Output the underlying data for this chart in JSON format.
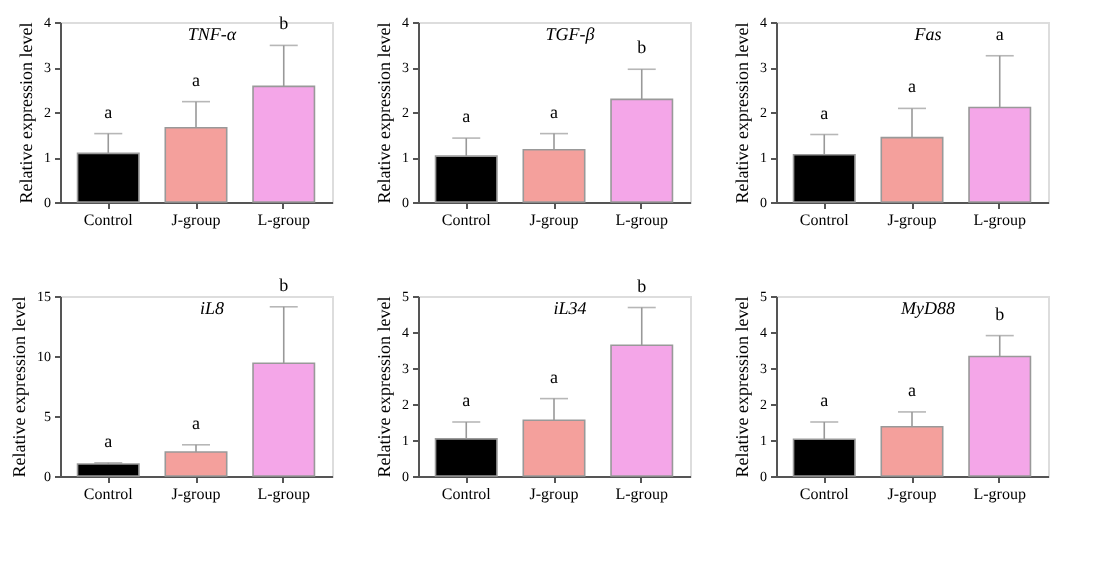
{
  "chart_data": [
    {
      "type": "bar",
      "title": "TNF-α",
      "ylabel": "Relative expression level",
      "categories": [
        "Control",
        "J-group",
        "L-group"
      ],
      "values": [
        1.08,
        1.65,
        2.57
      ],
      "colors": [
        "#000000",
        "#f4a09c",
        "#f4a6e8"
      ],
      "errors": [
        [
          1.08,
          1.52
        ],
        [
          1.65,
          2.23
        ],
        [
          2.57,
          3.48
        ]
      ],
      "ylim": [
        0,
        4
      ],
      "yticks": [
        0,
        1,
        2,
        3,
        4
      ],
      "grid": false,
      "annotations": [
        {
          "text": "a",
          "x": "Control",
          "y": 1.52
        },
        {
          "text": "a",
          "x": "J-group",
          "y": 2.23
        },
        {
          "text": "b",
          "x": "L-group",
          "y": 3.48
        }
      ]
    },
    {
      "type": "bar",
      "title": "TGF-β",
      "ylabel": "Relative expression level",
      "categories": [
        "Control",
        "J-group",
        "L-group"
      ],
      "values": [
        1.02,
        1.16,
        2.28
      ],
      "colors": [
        "#000000",
        "#f4a09c",
        "#f4a6e8"
      ],
      "errors": [
        [
          1.02,
          1.42
        ],
        [
          1.16,
          1.52
        ],
        [
          2.28,
          2.95
        ]
      ],
      "ylim": [
        0,
        4
      ],
      "yticks": [
        0,
        1,
        2,
        3,
        4
      ],
      "grid": false,
      "annotations": [
        {
          "text": "a",
          "x": "Control",
          "y": 1.42
        },
        {
          "text": "a",
          "x": "J-group",
          "y": 1.52
        },
        {
          "text": "b",
          "x": "L-group",
          "y": 2.95
        }
      ]
    },
    {
      "type": "bar",
      "title": "Fas",
      "ylabel": "Relative expression level",
      "categories": [
        "Control",
        "J-group",
        "L-group"
      ],
      "values": [
        1.05,
        1.43,
        2.1
      ],
      "colors": [
        "#000000",
        "#f4a09c",
        "#f4a6e8"
      ],
      "errors": [
        [
          1.05,
          1.5
        ],
        [
          1.43,
          2.08
        ],
        [
          2.1,
          3.25
        ]
      ],
      "ylim": [
        0,
        4
      ],
      "yticks": [
        0,
        1,
        2,
        3,
        4
      ],
      "grid": false,
      "annotations": [
        {
          "text": "a",
          "x": "Control",
          "y": 1.5
        },
        {
          "text": "a",
          "x": "J-group",
          "y": 2.08
        },
        {
          "text": "a",
          "x": "L-group",
          "y": 3.25
        }
      ]
    },
    {
      "type": "bar",
      "title": "iL8",
      "ylabel": "Relative expression level",
      "categories": [
        "Control",
        "J-group",
        "L-group"
      ],
      "values": [
        1.0,
        2.0,
        9.4
      ],
      "colors": [
        "#000000",
        "#f4a09c",
        "#f4a6e8"
      ],
      "errors": [
        [
          1.0,
          1.1
        ],
        [
          2.0,
          2.6
        ],
        [
          9.4,
          14.1
        ]
      ],
      "ylim": [
        0,
        15
      ],
      "yticks": [
        0,
        5,
        10,
        15
      ],
      "grid": false,
      "annotations": [
        {
          "text": "a",
          "x": "Control",
          "y": 1.1
        },
        {
          "text": "a",
          "x": "J-group",
          "y": 2.6
        },
        {
          "text": "b",
          "x": "L-group",
          "y": 14.1
        }
      ]
    },
    {
      "type": "bar",
      "title": "iL34",
      "ylabel": "Relative expression level",
      "categories": [
        "Control",
        "J-group",
        "L-group"
      ],
      "values": [
        1.03,
        1.55,
        3.63
      ],
      "colors": [
        "#000000",
        "#f4a09c",
        "#f4a6e8"
      ],
      "errors": [
        [
          1.03,
          1.5
        ],
        [
          1.55,
          2.15
        ],
        [
          3.63,
          4.68
        ]
      ],
      "ylim": [
        0,
        5
      ],
      "yticks": [
        0,
        1,
        2,
        3,
        4,
        5
      ],
      "grid": false,
      "annotations": [
        {
          "text": "a",
          "x": "Control",
          "y": 1.5
        },
        {
          "text": "a",
          "x": "J-group",
          "y": 2.15
        },
        {
          "text": "b",
          "x": "L-group",
          "y": 4.68
        }
      ]
    },
    {
      "type": "bar",
      "title": "MyD88",
      "ylabel": "Relative expression level",
      "categories": [
        "Control",
        "J-group",
        "L-group"
      ],
      "values": [
        1.02,
        1.37,
        3.32
      ],
      "colors": [
        "#000000",
        "#f4a09c",
        "#f4a6e8"
      ],
      "errors": [
        [
          1.02,
          1.5
        ],
        [
          1.37,
          1.78
        ],
        [
          3.32,
          3.9
        ]
      ],
      "ylim": [
        0,
        5
      ],
      "yticks": [
        0,
        1,
        2,
        3,
        4,
        5
      ],
      "grid": false,
      "annotations": [
        {
          "text": "a",
          "x": "Control",
          "y": 1.5
        },
        {
          "text": "a",
          "x": "J-group",
          "y": 1.78
        },
        {
          "text": "b",
          "x": "L-group",
          "y": 3.9
        }
      ]
    }
  ]
}
